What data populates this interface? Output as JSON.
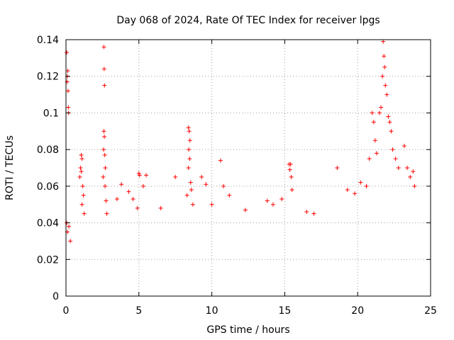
{
  "chart_data": {
    "type": "scatter",
    "title": "Day 068 of 2024, Rate Of TEC Index for receiver lpgs",
    "xlabel": "GPS time / hours",
    "ylabel": "ROTI / TECUs",
    "xlim": [
      0,
      25
    ],
    "ylim": [
      0,
      0.14
    ],
    "xticks": [
      0,
      5,
      10,
      15,
      20,
      25
    ],
    "xtick_labels": [
      "0",
      "5",
      "10",
      "15",
      "20",
      "25"
    ],
    "yticks": [
      0,
      0.02,
      0.04,
      0.06,
      0.08,
      0.1,
      0.12,
      0.14
    ],
    "ytick_labels": [
      "0",
      "0.02",
      "0.04",
      "0.06",
      "0.08",
      "0.1",
      "0.12",
      "0.14"
    ],
    "grid": true,
    "marker": "+",
    "color": "#ff0000",
    "series": [
      {
        "name": "ROTI",
        "points": [
          [
            0.05,
            0.133
          ],
          [
            0.08,
            0.117
          ],
          [
            0.1,
            0.12
          ],
          [
            0.12,
            0.123
          ],
          [
            0.14,
            0.112
          ],
          [
            0.16,
            0.103
          ],
          [
            0.18,
            0.1
          ],
          [
            0.05,
            0.04
          ],
          [
            0.1,
            0.035
          ],
          [
            0.2,
            0.038
          ],
          [
            0.3,
            0.03
          ],
          [
            1.05,
            0.077
          ],
          [
            1.1,
            0.075
          ],
          [
            1.0,
            0.07
          ],
          [
            1.05,
            0.068
          ],
          [
            1.15,
            0.06
          ],
          [
            1.2,
            0.055
          ],
          [
            1.1,
            0.05
          ],
          [
            1.25,
            0.045
          ],
          [
            0.95,
            0.065
          ],
          [
            2.6,
            0.136
          ],
          [
            2.62,
            0.124
          ],
          [
            2.64,
            0.115
          ],
          [
            2.6,
            0.09
          ],
          [
            2.63,
            0.087
          ],
          [
            2.58,
            0.08
          ],
          [
            2.66,
            0.077
          ],
          [
            2.7,
            0.07
          ],
          [
            2.55,
            0.065
          ],
          [
            2.68,
            0.06
          ],
          [
            2.75,
            0.052
          ],
          [
            2.8,
            0.045
          ],
          [
            3.8,
            0.061
          ],
          [
            3.5,
            0.053
          ],
          [
            4.3,
            0.057
          ],
          [
            4.6,
            0.053
          ],
          [
            4.9,
            0.048
          ],
          [
            5.0,
            0.067
          ],
          [
            5.05,
            0.066
          ],
          [
            5.5,
            0.066
          ],
          [
            5.3,
            0.06
          ],
          [
            6.5,
            0.048
          ],
          [
            7.5,
            0.065
          ],
          [
            8.4,
            0.092
          ],
          [
            8.45,
            0.09
          ],
          [
            8.5,
            0.085
          ],
          [
            8.42,
            0.08
          ],
          [
            8.48,
            0.075
          ],
          [
            8.4,
            0.07
          ],
          [
            8.55,
            0.062
          ],
          [
            8.6,
            0.058
          ],
          [
            8.3,
            0.055
          ],
          [
            8.7,
            0.05
          ],
          [
            9.3,
            0.065
          ],
          [
            9.6,
            0.061
          ],
          [
            10.0,
            0.05
          ],
          [
            10.6,
            0.074
          ],
          [
            10.8,
            0.06
          ],
          [
            11.2,
            0.055
          ],
          [
            12.3,
            0.047
          ],
          [
            13.8,
            0.052
          ],
          [
            14.2,
            0.05
          ],
          [
            14.8,
            0.053
          ],
          [
            15.3,
            0.072
          ],
          [
            15.4,
            0.072
          ],
          [
            15.35,
            0.069
          ],
          [
            15.45,
            0.065
          ],
          [
            15.5,
            0.058
          ],
          [
            16.5,
            0.046
          ],
          [
            17.0,
            0.045
          ],
          [
            18.6,
            0.07
          ],
          [
            19.3,
            0.058
          ],
          [
            19.8,
            0.056
          ],
          [
            20.2,
            0.062
          ],
          [
            20.6,
            0.06
          ],
          [
            20.8,
            0.075
          ],
          [
            21.0,
            0.1
          ],
          [
            21.1,
            0.095
          ],
          [
            21.2,
            0.085
          ],
          [
            21.3,
            0.078
          ],
          [
            21.5,
            0.1
          ],
          [
            21.6,
            0.103
          ],
          [
            21.7,
            0.12
          ],
          [
            21.75,
            0.139
          ],
          [
            21.8,
            0.131
          ],
          [
            21.85,
            0.125
          ],
          [
            21.9,
            0.115
          ],
          [
            22.0,
            0.11
          ],
          [
            22.1,
            0.098
          ],
          [
            22.2,
            0.095
          ],
          [
            22.3,
            0.09
          ],
          [
            22.4,
            0.08
          ],
          [
            22.6,
            0.075
          ],
          [
            22.8,
            0.07
          ],
          [
            23.2,
            0.082
          ],
          [
            23.4,
            0.07
          ],
          [
            23.6,
            0.065
          ],
          [
            23.8,
            0.068
          ],
          [
            23.9,
            0.06
          ]
        ]
      }
    ]
  }
}
